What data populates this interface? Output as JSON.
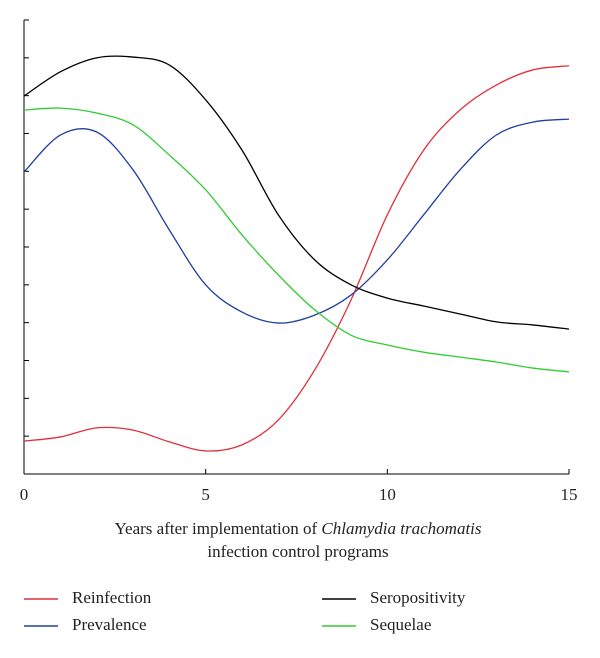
{
  "chart_data": {
    "type": "line",
    "x_label": {
      "prefix": "Years after implementation of",
      "italic": "Chlamydia trachomatis",
      "line2": "infection control programs"
    },
    "x": [
      0,
      1,
      2,
      3,
      4,
      5,
      6,
      7,
      8,
      9,
      10,
      11,
      12,
      13,
      14,
      15
    ],
    "xlim": [
      0,
      15
    ],
    "xticks": [
      0,
      5,
      10,
      15
    ],
    "ylim": [
      0,
      12
    ],
    "yticks": [
      0,
      1,
      2,
      3,
      4,
      5,
      6,
      7,
      8,
      9,
      10,
      11,
      12
    ],
    "series": [
      {
        "name": "Reinfection",
        "color": "#e0303a",
        "values": [
          0.87,
          0.98,
          1.22,
          1.16,
          0.85,
          0.61,
          0.77,
          1.43,
          2.75,
          4.6,
          6.85,
          8.56,
          9.62,
          10.28,
          10.68,
          10.79
        ]
      },
      {
        "name": "Prevalence",
        "color": "#2040a0",
        "values": [
          7.98,
          8.96,
          9.04,
          8.04,
          6.45,
          5.0,
          4.28,
          3.99,
          4.2,
          4.73,
          5.66,
          6.85,
          8.04,
          8.96,
          9.3,
          9.38
        ]
      },
      {
        "name": "Seropositivity",
        "color": "#000000",
        "values": [
          9.99,
          10.63,
          11.0,
          11.02,
          10.81,
          9.89,
          8.56,
          6.85,
          5.66,
          5.0,
          4.65,
          4.44,
          4.23,
          4.02,
          3.94,
          3.83
        ]
      },
      {
        "name": "Sequelae",
        "color": "#33cc33",
        "values": [
          9.62,
          9.67,
          9.54,
          9.23,
          8.43,
          7.51,
          6.32,
          5.26,
          4.34,
          3.67,
          3.41,
          3.22,
          3.09,
          2.96,
          2.8,
          2.7
        ]
      }
    ]
  }
}
